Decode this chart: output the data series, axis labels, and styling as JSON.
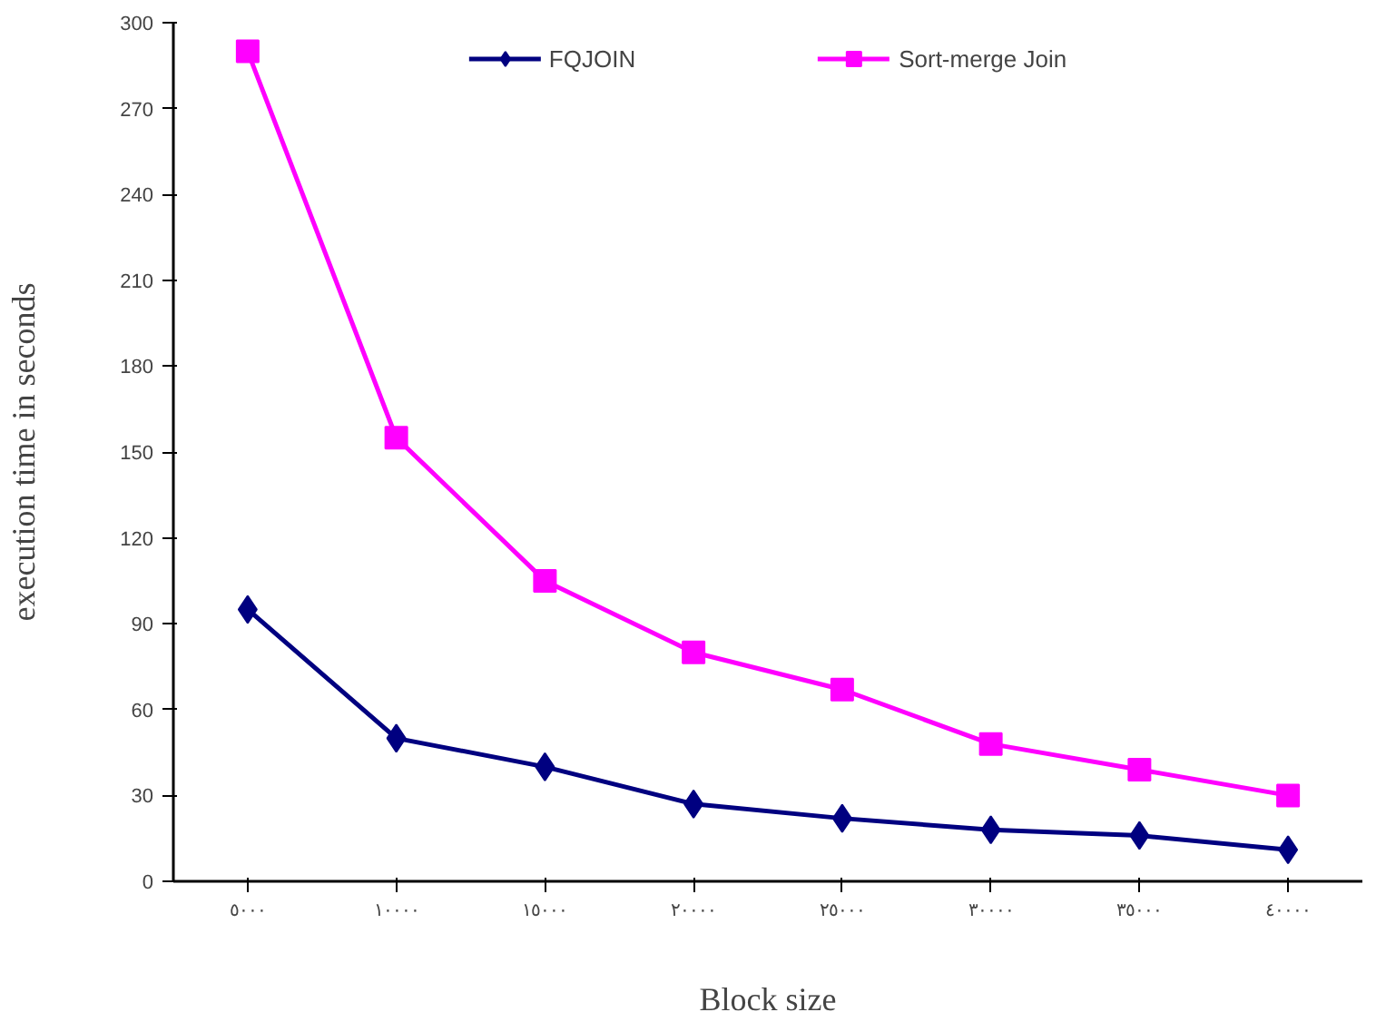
{
  "chart_data": {
    "type": "line",
    "xlabel": "Block size",
    "ylabel": "execution time in seconds",
    "categories": [
      "٥٠٠٠",
      "١٠٠٠٠",
      "١٥٠٠٠",
      "٢٠٠٠٠",
      "٢٥٠٠٠",
      "٣٠٠٠٠",
      "٣٥٠٠٠",
      "٤٠٠٠٠"
    ],
    "series": [
      {
        "name": "FQJOIN",
        "color": "#000080",
        "marker": "diamond",
        "values": [
          95,
          50,
          40,
          27,
          22,
          18,
          16,
          11
        ]
      },
      {
        "name": "Sort-merge Join",
        "color": "#ff00ff",
        "marker": "square",
        "values": [
          290,
          155,
          105,
          80,
          67,
          48,
          39,
          30
        ]
      }
    ],
    "ylim": [
      0,
      300
    ],
    "yticks": [
      0,
      30,
      60,
      90,
      120,
      150,
      180,
      210,
      240,
      270,
      300
    ],
    "grid": false,
    "legend": "top"
  }
}
